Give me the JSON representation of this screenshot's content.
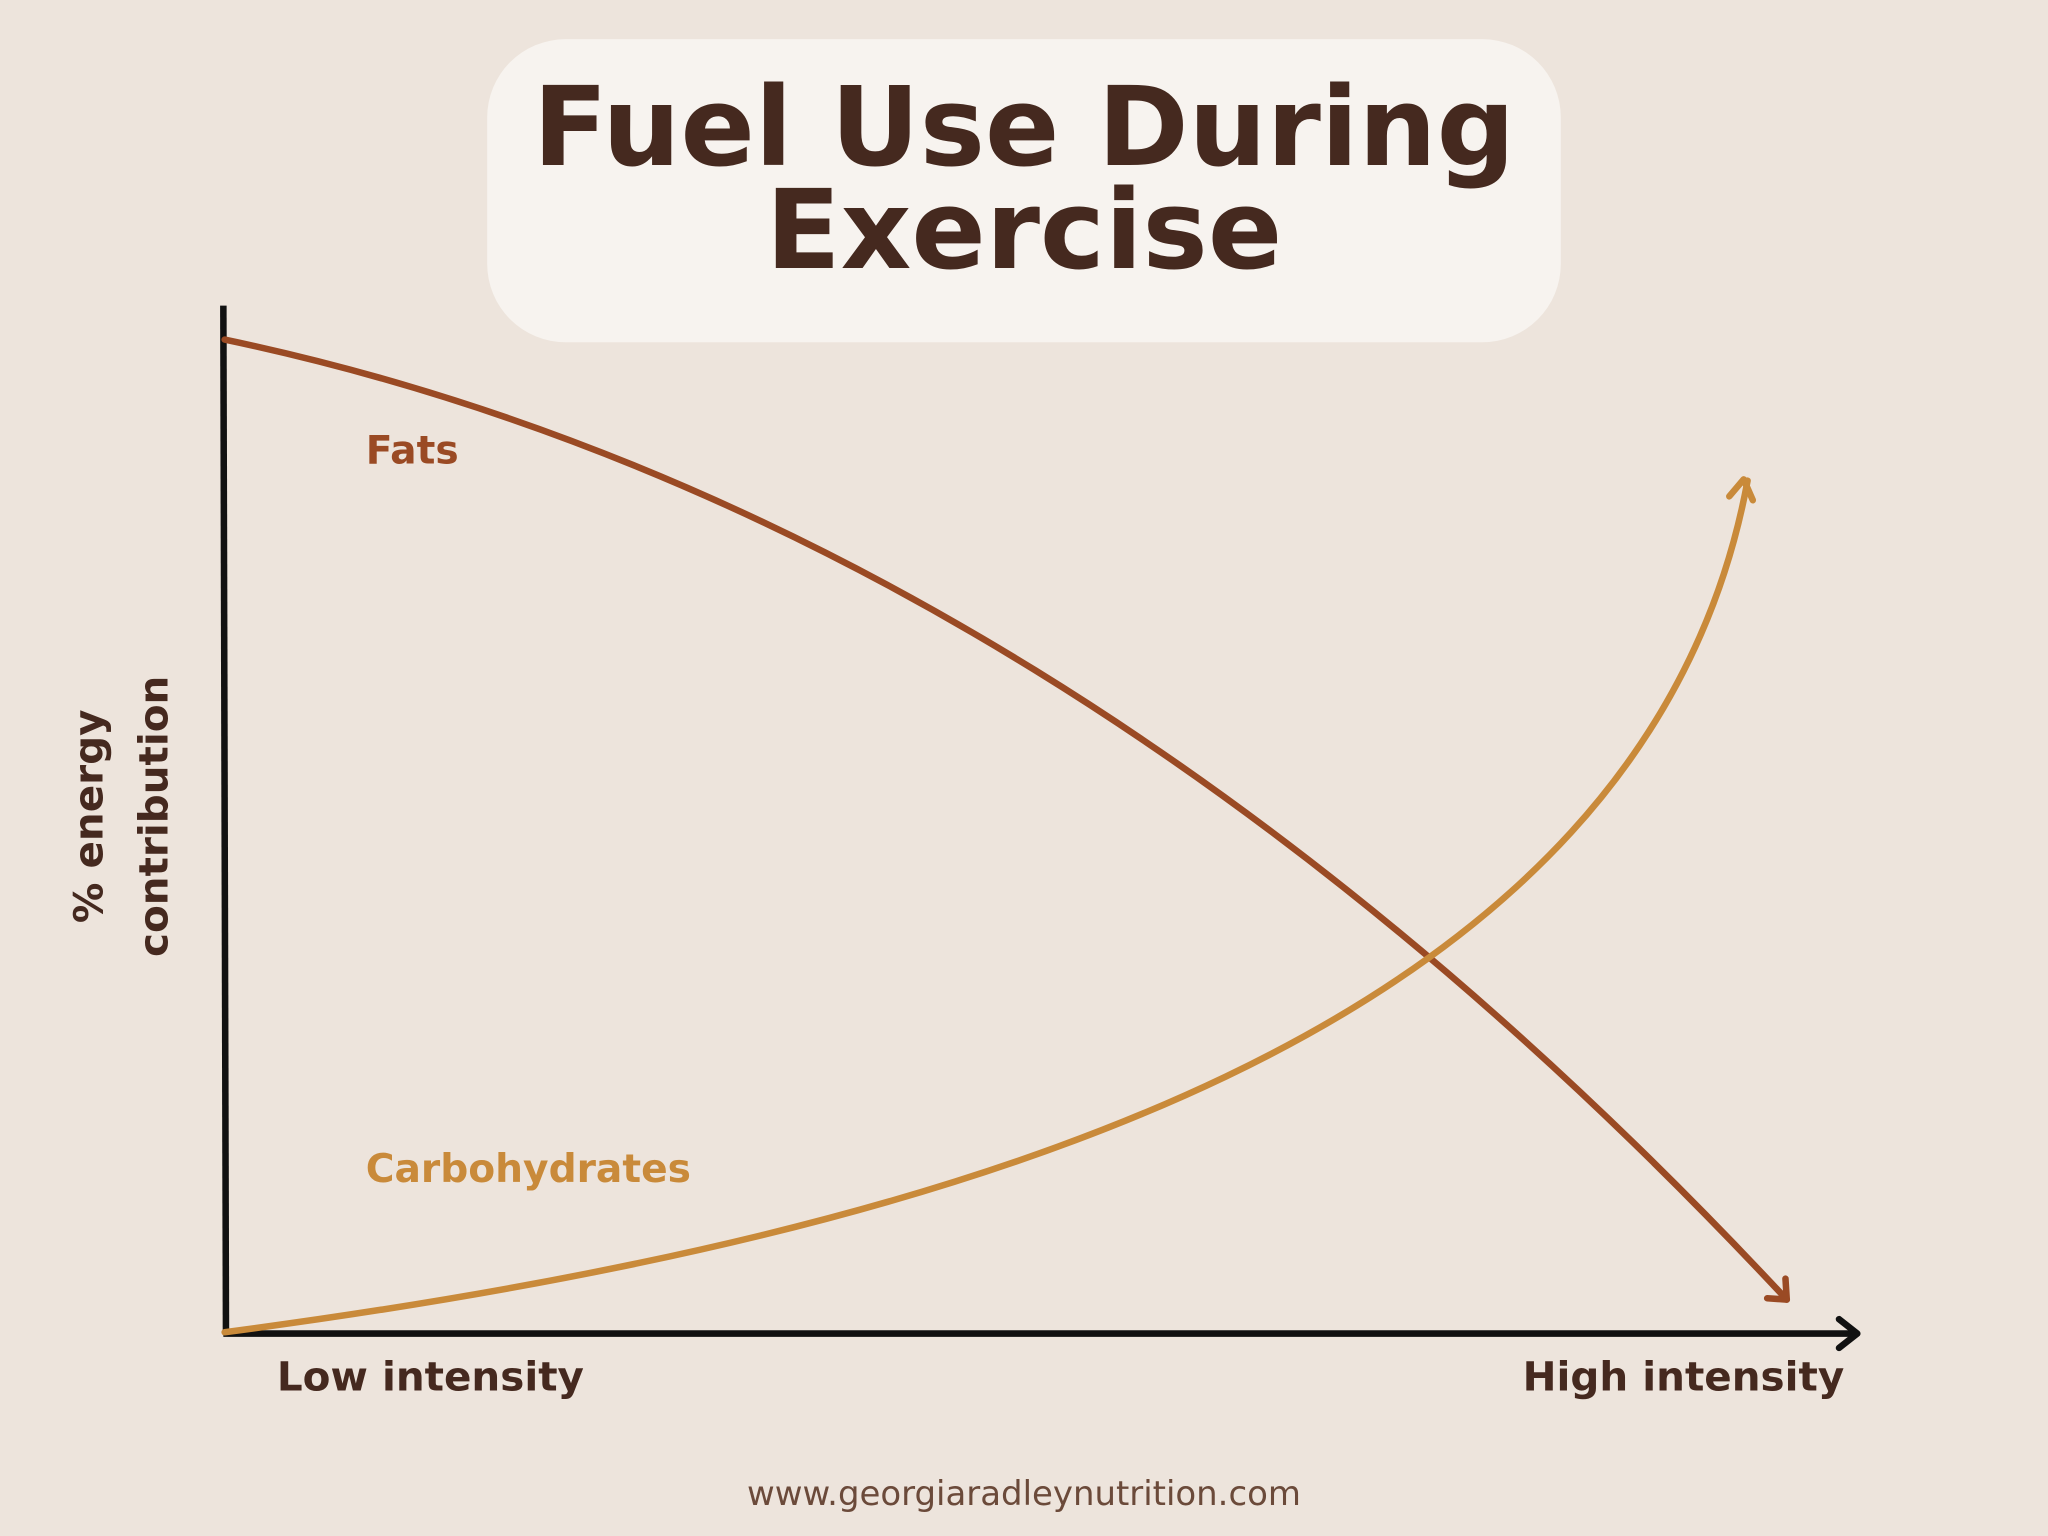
{
  "header": {
    "title_lines": [
      "Fuel Use During",
      "Exercise"
    ]
  },
  "axes": {
    "y_label_lines": [
      "% energy",
      "contribution"
    ],
    "x_start_label": "Low intensity",
    "x_end_label": "High intensity"
  },
  "curves": {
    "fats": "Fats",
    "carbohydrates": "Carbohydrates"
  },
  "footer": {
    "url": "www.georgiaradleynutrition.com"
  }
}
